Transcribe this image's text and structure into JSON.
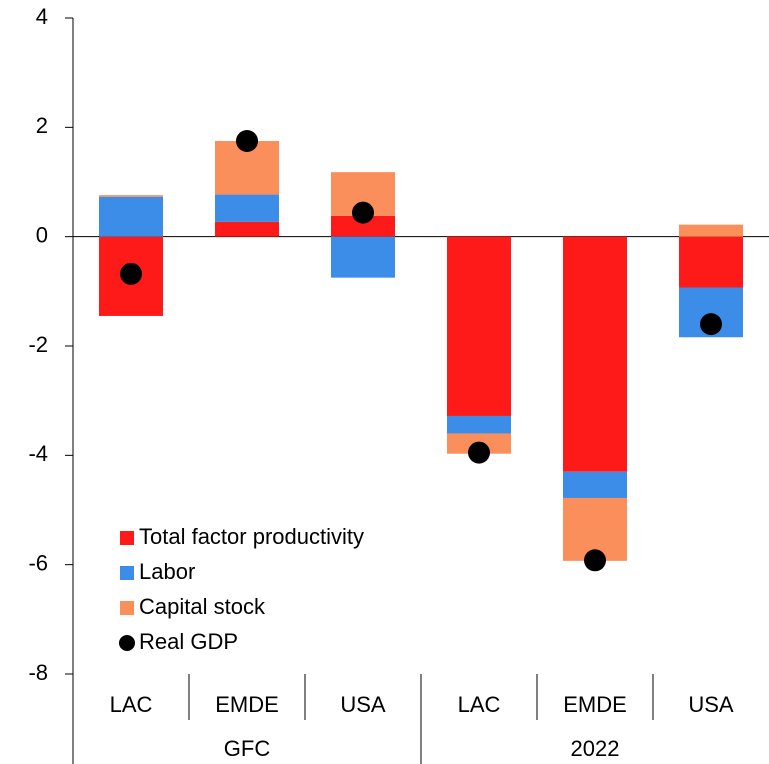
{
  "chart_data": {
    "type": "bar",
    "stacked": true,
    "categories": [
      "LAC",
      "EMDE",
      "USA",
      "LAC",
      "EMDE",
      "USA"
    ],
    "groups": [
      "GFC",
      "2022"
    ],
    "series": [
      {
        "name": "Total factor productivity",
        "color": "#ff1a1a",
        "values": [
          -1.45,
          0.27,
          0.38,
          -3.28,
          -4.3,
          -0.93
        ]
      },
      {
        "name": "Labor",
        "color": "#3b8de8",
        "values": [
          0.73,
          0.5,
          -0.75,
          -0.32,
          -0.48,
          -0.91
        ]
      },
      {
        "name": "Capital stock",
        "color": "#fa8f5c",
        "values": [
          0.03,
          0.98,
          0.8,
          -0.37,
          -1.15,
          0.22
        ]
      },
      {
        "name": "Real GDP",
        "color": "#000000",
        "type": "scatter",
        "values": [
          -0.68,
          1.75,
          0.44,
          -3.95,
          -5.92,
          -1.6
        ]
      }
    ],
    "ylim": [
      -8,
      4
    ],
    "yticks": [
      -8,
      -6,
      -4,
      -2,
      0,
      2,
      4
    ],
    "grid": false
  }
}
